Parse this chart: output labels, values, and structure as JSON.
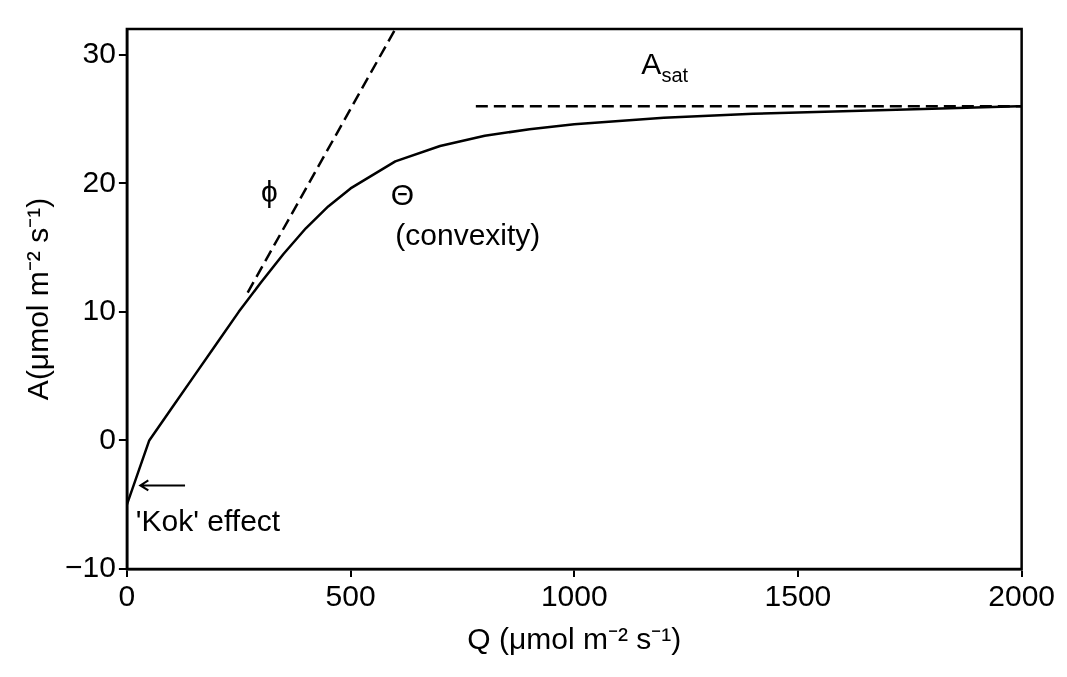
{
  "chart_data": {
    "type": "line",
    "xlabel": "Q (μmol m⁻² s⁻¹)",
    "ylabel": "A(μmol m⁻² s⁻¹)",
    "xlim": [
      0,
      2000
    ],
    "ylim": [
      -10,
      32
    ],
    "xticks": [
      0,
      500,
      1000,
      1500,
      2000
    ],
    "yticks": [
      -10,
      0,
      10,
      20,
      30
    ],
    "grid": false,
    "legend": false,
    "marker": "none",
    "series": [
      {
        "color": "#000000",
        "line_style": "solid",
        "x": [
          0,
          50,
          100,
          150,
          200,
          250,
          300,
          350,
          400,
          450,
          500,
          600,
          700,
          800,
          900,
          1000,
          1200,
          1400,
          1600,
          1800,
          2000
        ],
        "values": [
          -5,
          0,
          2.5,
          5,
          7.5,
          10,
          12.3,
          14.5,
          16.5,
          18.2,
          19.6,
          21.7,
          22.9,
          23.7,
          24.2,
          24.6,
          25.1,
          25.4,
          25.6,
          25.8,
          26
        ]
      },
      {
        "color": "#000000",
        "line_style": "dashed",
        "x": [
          270,
          600
        ],
        "values": [
          11.5,
          32
        ]
      },
      {
        "color": "#000000",
        "line_style": "dashed",
        "x": [
          780,
          2000
        ],
        "values": [
          26,
          26
        ]
      }
    ],
    "annotations": [
      "A$_{sat}$",
      "ϕ",
      "Θ",
      "(convexity)",
      "'Kok' effect"
    ]
  }
}
